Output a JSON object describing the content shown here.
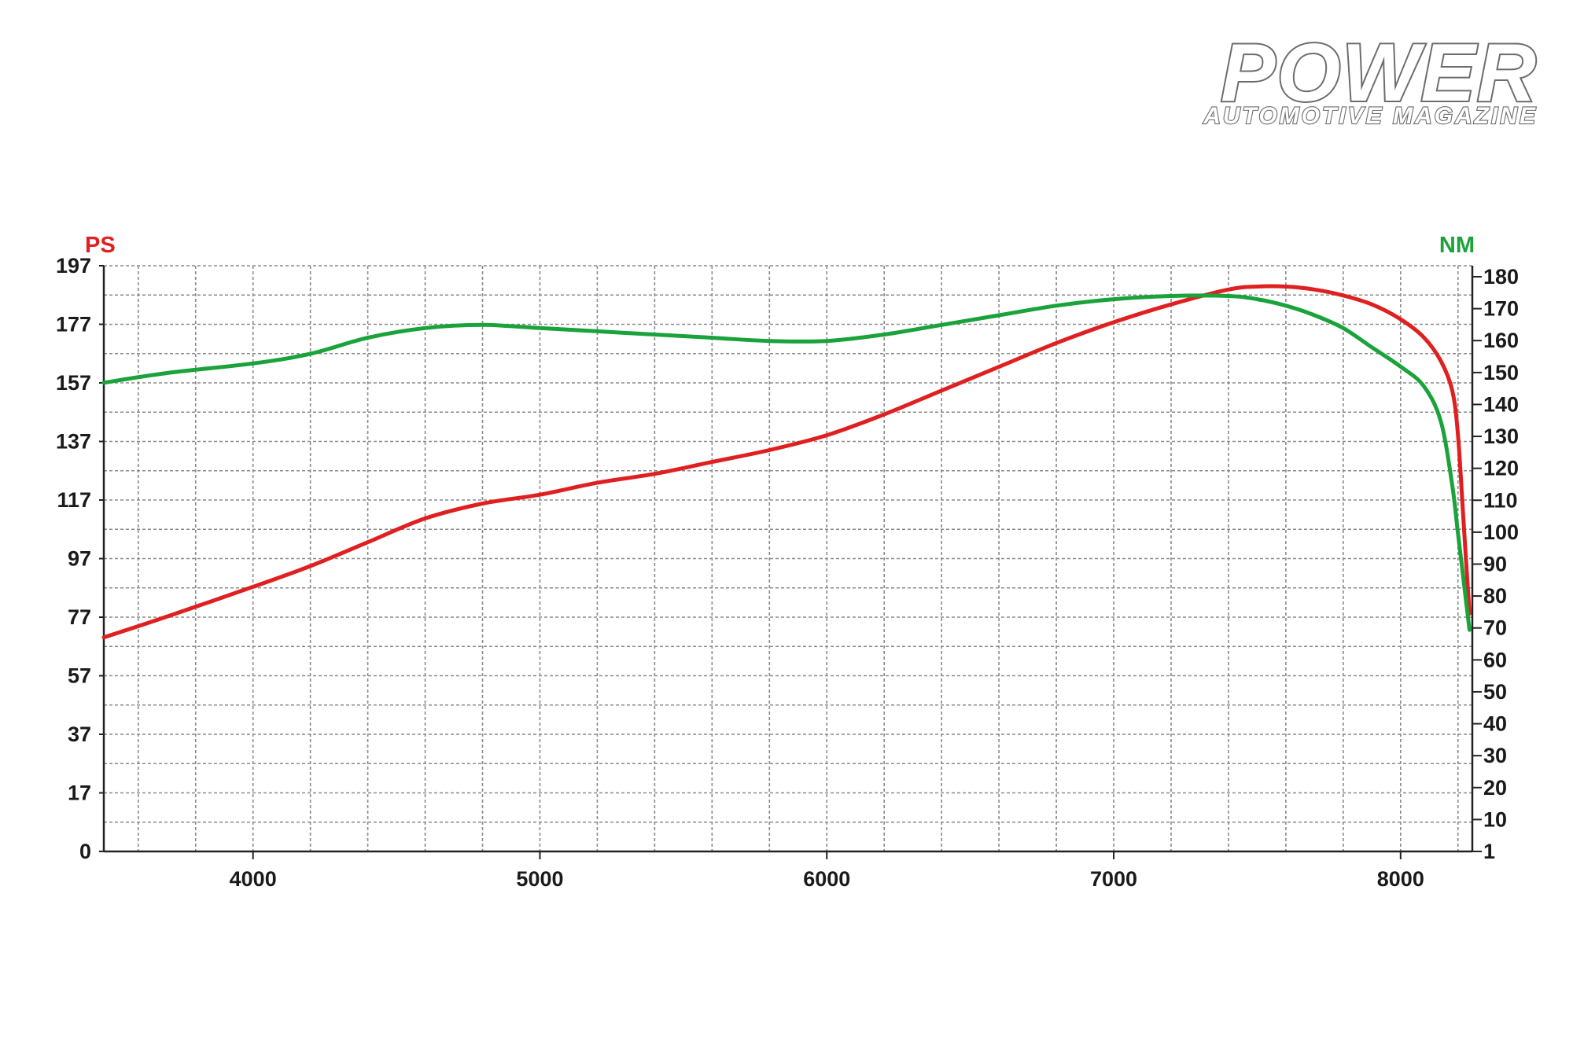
{
  "logo": {
    "main": "POWER",
    "sub": "AUTOMOTIVE MAGAZINE"
  },
  "chart_data": {
    "type": "line",
    "title": "",
    "xlabel": "",
    "x_ticks": [
      4000,
      5000,
      6000,
      7000,
      8000
    ],
    "xlim": [
      3480,
      8250
    ],
    "left_axis": {
      "label": "PS",
      "color": "#e02020",
      "ticks": [
        "197",
        "177",
        "157",
        "137",
        "117",
        "97",
        "77",
        "57",
        "37",
        "17",
        "0"
      ],
      "ylim": [
        0,
        197
      ]
    },
    "right_axis": {
      "label": "NM",
      "color": "#1aa33a",
      "ticks": [
        "180",
        "170",
        "160",
        "150",
        "140",
        "130",
        "120",
        "110",
        "100",
        "90",
        "80",
        "70",
        "60",
        "50",
        "40",
        "30",
        "20",
        "10",
        "1"
      ],
      "ylim": [
        1,
        180
      ]
    },
    "grid": true,
    "series": [
      {
        "axis": "left",
        "color": "#e02020",
        "x": [
          3480,
          3700,
          4000,
          4200,
          4400,
          4600,
          4800,
          5000,
          5200,
          5400,
          5600,
          5800,
          6000,
          6200,
          6400,
          6600,
          6800,
          7000,
          7200,
          7400,
          7500,
          7600,
          7700,
          7800,
          7900,
          8000,
          8080,
          8140,
          8180,
          8200,
          8220,
          8240
        ],
        "y": [
          72,
          79,
          89,
          96,
          104,
          112,
          117,
          120,
          124,
          127,
          131,
          135,
          140,
          147,
          155,
          163,
          171,
          178,
          184,
          189,
          190,
          190,
          189,
          187,
          184,
          179,
          173,
          165,
          155,
          140,
          110,
          80
        ]
      },
      {
        "axis": "right",
        "color": "#1aa33a",
        "x": [
          3480,
          3700,
          4000,
          4200,
          4400,
          4600,
          4800,
          5000,
          5200,
          5400,
          5600,
          5800,
          6000,
          6200,
          6400,
          6600,
          6800,
          7000,
          7200,
          7400,
          7500,
          7600,
          7700,
          7800,
          7900,
          8000,
          8080,
          8140,
          8180,
          8200,
          8220,
          8240
        ],
        "y": [
          147,
          150,
          153,
          156,
          161,
          164,
          165,
          164,
          163,
          162,
          161,
          160,
          160,
          162,
          165,
          168,
          171,
          173,
          174,
          174,
          173,
          171,
          168,
          164,
          158,
          152,
          146,
          135,
          115,
          100,
          85,
          70
        ]
      }
    ]
  }
}
